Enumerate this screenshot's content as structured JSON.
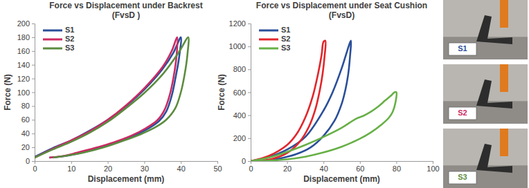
{
  "chart_data": [
    {
      "type": "line",
      "title": [
        "Force vs Displacement under Backrest",
        "(FvsD )"
      ],
      "x_label": "Displacement (mm)",
      "y_label": "Force (N)",
      "xlim": [
        0,
        50
      ],
      "xticks": [
        0,
        10,
        20,
        30,
        40,
        50
      ],
      "ylim": [
        0,
        200
      ],
      "yticks": [
        0,
        20,
        40,
        60,
        80,
        100,
        120,
        140,
        160,
        180,
        200
      ],
      "grid": false,
      "legend": "top-left",
      "series": [
        {
          "name": "S1",
          "color": "#2a4f9a",
          "x": [
            0,
            5,
            10,
            15,
            20,
            25,
            30,
            35,
            38,
            40,
            39.5,
            38.5,
            37.5,
            36,
            34,
            31,
            27,
            22,
            17,
            12,
            8,
            4
          ],
          "values": [
            6,
            19,
            30,
            44,
            60,
            80,
            104,
            134,
            158,
            180,
            150,
            120,
            95,
            72,
            58,
            47,
            36,
            26,
            18,
            11,
            7,
            5
          ]
        },
        {
          "name": "S2",
          "color": "#cc2a62",
          "x": [
            0,
            5,
            10,
            15,
            20,
            25,
            30,
            35,
            37.5,
            39,
            38.8,
            38,
            37,
            35.5,
            33.5,
            30.5,
            26.5,
            21.5,
            16.5,
            11.5,
            7.5,
            4
          ],
          "values": [
            5,
            18,
            30,
            43,
            60,
            81,
            106,
            137,
            160,
            180,
            152,
            122,
            97,
            74,
            59,
            48,
            37,
            27,
            19,
            12,
            7,
            5
          ]
        },
        {
          "name": "S3",
          "color": "#5b8c3e",
          "x": [
            0,
            5,
            10,
            15,
            20,
            25,
            30,
            35,
            38,
            40,
            42,
            41.8,
            41,
            40,
            38.5,
            36,
            33,
            29,
            24,
            19,
            14,
            9,
            5
          ],
          "values": [
            5,
            17,
            28,
            41,
            57,
            77,
            99,
            126,
            147,
            163,
            180,
            155,
            125,
            100,
            77,
            60,
            49,
            39,
            29,
            20,
            13,
            8,
            5
          ]
        }
      ]
    },
    {
      "type": "line",
      "title": [
        "Force vs Displacement under Seat Cushion",
        "(FvsD)"
      ],
      "x_label": "Displacement (mm)",
      "y_label": "Force (N)",
      "xlim": [
        0,
        100
      ],
      "xticks": [
        0,
        20,
        40,
        60,
        80,
        100
      ],
      "ylim": [
        0,
        1200
      ],
      "yticks": [
        0,
        200,
        400,
        600,
        800,
        1000,
        1200
      ],
      "grid": false,
      "legend": "top-left",
      "series": [
        {
          "name": "S1",
          "color": "#2a4f9a",
          "x": [
            0,
            10,
            20,
            30,
            40,
            45,
            50,
            53,
            55,
            54.5,
            53.5,
            52,
            50,
            46,
            40,
            33,
            25,
            15,
            5,
            0
          ],
          "values": [
            0,
            35,
            100,
            210,
            440,
            600,
            810,
            960,
            1050,
            900,
            750,
            620,
            500,
            350,
            220,
            120,
            60,
            20,
            3,
            0
          ]
        },
        {
          "name": "S2",
          "color": "#e2262b",
          "x": [
            0,
            10,
            20,
            25,
            30,
            34,
            37,
            39,
            40,
            41,
            40.5,
            39.5,
            38,
            35.5,
            32,
            27,
            20,
            12,
            5,
            0
          ],
          "values": [
            0,
            45,
            140,
            230,
            380,
            560,
            760,
            930,
            1040,
            1050,
            900,
            760,
            620,
            450,
            300,
            170,
            70,
            20,
            4,
            0
          ]
        },
        {
          "name": "S3",
          "color": "#67b046",
          "x": [
            0,
            10,
            20,
            30,
            40,
            50,
            58,
            62,
            66,
            70,
            74,
            77,
            79,
            80,
            79.5,
            78,
            76,
            72,
            66,
            60,
            50,
            40,
            30,
            20,
            10,
            0
          ],
          "values": [
            0,
            30,
            80,
            140,
            210,
            290,
            370,
            395,
            430,
            475,
            530,
            570,
            600,
            600,
            510,
            430,
            380,
            320,
            250,
            195,
            125,
            75,
            38,
            15,
            4,
            0
          ]
        }
      ]
    }
  ],
  "photos": [
    {
      "label": "S1",
      "color": "#2a4f9a"
    },
    {
      "label": "S2",
      "color": "#cc2a62"
    },
    {
      "label": "S3",
      "color": "#5b8c3e"
    }
  ]
}
